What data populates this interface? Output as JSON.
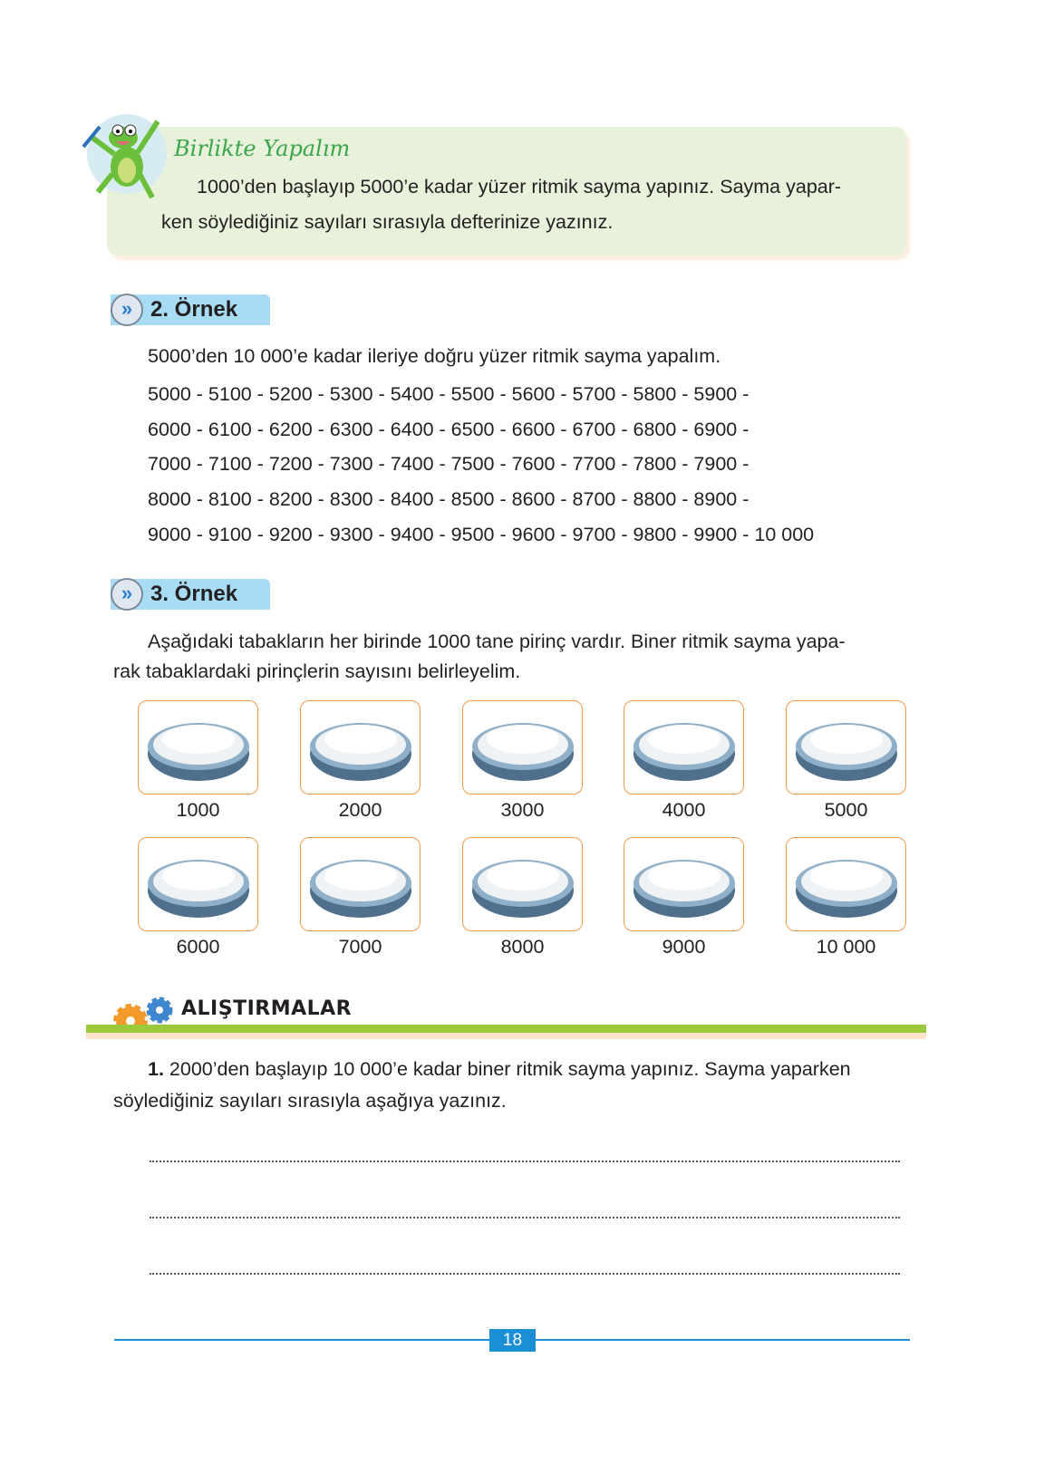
{
  "activity": {
    "title": "Birlikte Yapalım",
    "line1": "1000’den başlayıp 5000’e kadar yüzer ritmik sayma yapınız. Sayma yapar-",
    "line2": "ken söylediğiniz sayıları sırasıyla defterinize yazınız."
  },
  "example2": {
    "label": "2. Örnek",
    "intro": "5000’den 10 000’e kadar ileriye doğru yüzer ritmik sayma yapalım.",
    "lines": [
      "5000 - 5100 - 5200 - 5300 - 5400 - 5500 - 5600 - 5700 - 5800 - 5900 -",
      "6000 - 6100 - 6200 - 6300 - 6400 - 6500 - 6600 - 6700 - 6800 - 6900 -",
      "7000 - 7100 - 7200 - 7300 - 7400 - 7500 - 7600 - 7700 - 7800 - 7900 -",
      "8000 - 8100 - 8200 - 8300 - 8400 - 8500 - 8600 - 8700 - 8800 - 8900 -",
      "9000 - 9100 - 9200 - 9300 - 9400 - 9500 - 9600 - 9700 - 9800 - 9900 - 10 000"
    ]
  },
  "example3": {
    "label": "3. Örnek",
    "line1": "Aşağıdaki tabakların her birinde 1000 tane pirinç vardır. Biner ritmik sayma yapa-",
    "line2": "rak tabaklardaki pirinçlerin sayısını belirleyelim.",
    "plates": [
      "1000",
      "2000",
      "3000",
      "4000",
      "5000",
      "6000",
      "7000",
      "8000",
      "9000",
      "10 000"
    ]
  },
  "exercises": {
    "title": "ALIŞTIRMALAR",
    "num": "1.",
    "line1": " 2000’den başlayıp 10 000’e kadar biner ritmik sayma yapınız. Sayma yaparken",
    "line2": "söylediğiniz sayıları sırasıyla aşağıya yazınız."
  },
  "page_number": "18",
  "colors": {
    "accent_green": "#3aa64a",
    "badge_blue": "#a8dcf5",
    "plate_border": "#f39a4a",
    "footer_blue": "#1a8fd6",
    "bar_green": "#9bc93c"
  }
}
